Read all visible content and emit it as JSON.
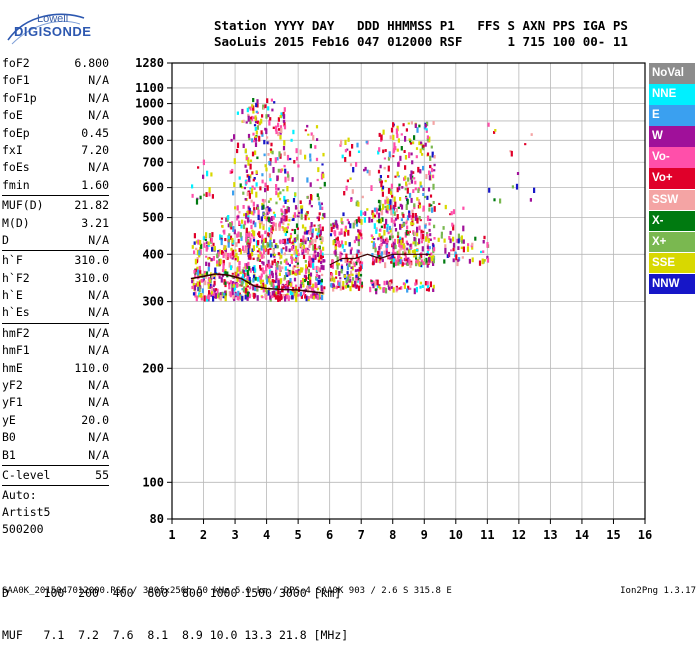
{
  "logo": {
    "top": "Lowell",
    "bottom": "DIGISONDE"
  },
  "header": {
    "line1": "Station YYYY DAY   DDD HHMMSS P1   FFS S AXN PPS IGA PS",
    "line2": "SaoLuis 2015 Feb16 047 012000 RSF      1 715 100 00- 11"
  },
  "params_group1": [
    {
      "name": "foF2",
      "value": "6.800"
    },
    {
      "name": "foF1",
      "value": "N/A"
    },
    {
      "name": "foF1p",
      "value": "N/A"
    },
    {
      "name": "foE",
      "value": "N/A"
    },
    {
      "name": "foEp",
      "value": "0.45"
    },
    {
      "name": "fxI",
      "value": "7.20"
    },
    {
      "name": "foEs",
      "value": "N/A"
    },
    {
      "name": "fmin",
      "value": "1.60"
    }
  ],
  "params_group2": [
    {
      "name": "MUF(D)",
      "value": "21.82"
    },
    {
      "name": "M(D)",
      "value": "3.21"
    },
    {
      "name": "D",
      "value": "N/A"
    }
  ],
  "params_group3": [
    {
      "name": "h`F",
      "value": "310.0"
    },
    {
      "name": "h`F2",
      "value": "310.0"
    },
    {
      "name": "h`E",
      "value": "N/A"
    },
    {
      "name": "h`Es",
      "value": "N/A"
    }
  ],
  "params_group4": [
    {
      "name": "hmF2",
      "value": "N/A"
    },
    {
      "name": "hmF1",
      "value": "N/A"
    },
    {
      "name": "hmE",
      "value": "110.0"
    },
    {
      "name": "yF2",
      "value": "N/A"
    },
    {
      "name": "yF1",
      "value": "N/A"
    },
    {
      "name": "yE",
      "value": "20.0"
    },
    {
      "name": "B0",
      "value": "N/A"
    },
    {
      "name": "B1",
      "value": "N/A"
    }
  ],
  "params_group5": [
    {
      "name": "C-level",
      "value": "55"
    }
  ],
  "autoscaling": {
    "line1": "Auto:",
    "line2": "Artist5",
    "line3": "500200"
  },
  "legend": [
    {
      "label": "NoVal",
      "color": "#8c8c8c"
    },
    {
      "label": "NNE",
      "color": "#00f0ff"
    },
    {
      "label": "E",
      "color": "#3aa0f0"
    },
    {
      "label": "W",
      "color": "#a0109a"
    },
    {
      "label": "Vo-",
      "color": "#ff4faa"
    },
    {
      "label": "Vo+",
      "color": "#e0002a"
    },
    {
      "label": "SSW",
      "color": "#f4a4a4"
    },
    {
      "label": "X-",
      "color": "#007a10"
    },
    {
      "label": "X+",
      "color": "#7ab850"
    },
    {
      "label": "SSE",
      "color": "#d8d800"
    },
    {
      "label": "NNW",
      "color": "#1616c8"
    }
  ],
  "dmuf": {
    "line1": "D     100  200  400  600  800 1000 1500 3000 [km]",
    "line2": "MUF   7.1  7.2  7.6  8.1  8.9 10.0 13.3 21.8 [MHz]"
  },
  "footer": {
    "left": "SAA0K_2015047012000.RSF / 300fx256h 50 kHz 5.0 km / DPS-4 SAA0K 903 / 2.6 S 315.8 E",
    "right": "Ion2Png 1.3.17"
  },
  "chart_data": {
    "type": "scatter",
    "title": "",
    "xlabel": "",
    "ylabel": "",
    "xlim": [
      1,
      16
    ],
    "ylim": [
      80,
      1280
    ],
    "y_scale": "log",
    "grid": true,
    "x_ticks": [
      1,
      2,
      3,
      4,
      5,
      6,
      7,
      8,
      9,
      10,
      11,
      12,
      13,
      14,
      15,
      16
    ],
    "y_ticks": [
      80,
      100,
      200,
      300,
      400,
      500,
      600,
      700,
      800,
      900,
      1000,
      1100,
      1280
    ],
    "ordinary_trace": [
      {
        "x": 1.6,
        "y": 345
      },
      {
        "x": 2.0,
        "y": 350
      },
      {
        "x": 2.4,
        "y": 355
      },
      {
        "x": 2.8,
        "y": 352
      },
      {
        "x": 3.2,
        "y": 345
      },
      {
        "x": 3.6,
        "y": 330
      },
      {
        "x": 4.0,
        "y": 325
      },
      {
        "x": 4.5,
        "y": 323
      },
      {
        "x": 5.0,
        "y": 322
      },
      {
        "x": 5.5,
        "y": 318
      },
      {
        "x": 5.8,
        "y": 316
      }
    ],
    "ordinary_trace_upper": [
      {
        "x": 6.0,
        "y": 375
      },
      {
        "x": 6.4,
        "y": 390
      },
      {
        "x": 6.8,
        "y": 390
      },
      {
        "x": 7.2,
        "y": 400
      },
      {
        "x": 7.6,
        "y": 390
      },
      {
        "x": 8.0,
        "y": 400
      },
      {
        "x": 8.6,
        "y": 400
      },
      {
        "x": 9.2,
        "y": 400
      }
    ],
    "echo_clusters": [
      {
        "x_from": 1.6,
        "x_to": 2.5,
        "y_from": 310,
        "y_to": 460,
        "density": "high"
      },
      {
        "x_from": 1.6,
        "x_to": 2.3,
        "y_from": 560,
        "y_to": 720,
        "density": "low"
      },
      {
        "x_from": 2.5,
        "x_to": 3.4,
        "y_from": 310,
        "y_to": 520,
        "density": "high"
      },
      {
        "x_from": 2.8,
        "x_to": 3.7,
        "y_from": 520,
        "y_to": 1000,
        "density": "low"
      },
      {
        "x_from": 3.3,
        "x_to": 4.3,
        "y_from": 310,
        "y_to": 500,
        "density": "high"
      },
      {
        "x_from": 3.3,
        "x_to": 4.6,
        "y_from": 500,
        "y_to": 1040,
        "density": "medium"
      },
      {
        "x_from": 4.3,
        "x_to": 5.8,
        "y_from": 310,
        "y_to": 540,
        "density": "high"
      },
      {
        "x_from": 4.6,
        "x_to": 5.9,
        "y_from": 540,
        "y_to": 900,
        "density": "low"
      },
      {
        "x_from": 6.0,
        "x_to": 7.0,
        "y_from": 330,
        "y_to": 500,
        "density": "high"
      },
      {
        "x_from": 6.3,
        "x_to": 7.3,
        "y_from": 500,
        "y_to": 820,
        "density": "low"
      },
      {
        "x_from": 7.3,
        "x_to": 9.3,
        "y_from": 380,
        "y_to": 540,
        "density": "high"
      },
      {
        "x_from": 7.5,
        "x_to": 9.3,
        "y_from": 540,
        "y_to": 900,
        "density": "medium"
      },
      {
        "x_from": 7.2,
        "x_to": 9.3,
        "y_from": 325,
        "y_to": 345,
        "density": "high"
      },
      {
        "x_from": 9.6,
        "x_to": 11.0,
        "y_from": 385,
        "y_to": 450,
        "density": "medium"
      },
      {
        "x_from": 9.4,
        "x_to": 10.4,
        "y_from": 440,
        "y_to": 560,
        "density": "low"
      },
      {
        "x_from": 11.0,
        "x_to": 12.5,
        "y_from": 560,
        "y_to": 900,
        "density": "sparse"
      }
    ]
  }
}
